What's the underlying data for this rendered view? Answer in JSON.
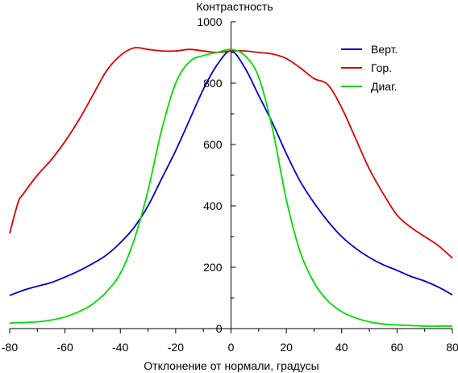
{
  "chart_data": {
    "type": "line",
    "title": "",
    "xlabel": "Отклонение от нормали, градусы",
    "ylabel": "Контрастность",
    "xlim": [
      -80,
      80
    ],
    "ylim": [
      0,
      1000
    ],
    "x_ticks": [
      -80,
      -60,
      -40,
      -20,
      0,
      20,
      40,
      60,
      80
    ],
    "y_ticks": [
      0,
      200,
      400,
      600,
      800,
      1000
    ],
    "grid": false,
    "legend_position": "top-right",
    "series": [
      {
        "name": "Верт.",
        "color": "#0000cc",
        "x": [
          -80,
          -75,
          -70,
          -65,
          -60,
          -55,
          -50,
          -45,
          -40,
          -35,
          -30,
          -25,
          -20,
          -15,
          -10,
          -5,
          0,
          5,
          10,
          15,
          20,
          25,
          30,
          35,
          40,
          45,
          50,
          55,
          60,
          65,
          70,
          75,
          80
        ],
        "y": [
          108,
          125,
          138,
          150,
          168,
          188,
          212,
          240,
          280,
          330,
          400,
          490,
          580,
          680,
          780,
          860,
          905,
          850,
          760,
          670,
          570,
          480,
          410,
          350,
          300,
          262,
          232,
          208,
          190,
          170,
          155,
          135,
          110
        ]
      },
      {
        "name": "Гор.",
        "color": "#dd0000",
        "x": [
          -80,
          -77,
          -75,
          -70,
          -65,
          -60,
          -55,
          -50,
          -45,
          -40,
          -35,
          -30,
          -25,
          -20,
          -15,
          -10,
          -5,
          0,
          5,
          10,
          15,
          20,
          25,
          30,
          35,
          40,
          45,
          50,
          55,
          60,
          65,
          70,
          75,
          80
        ],
        "y": [
          310,
          410,
          440,
          500,
          550,
          610,
          680,
          760,
          840,
          890,
          915,
          910,
          905,
          905,
          910,
          905,
          900,
          905,
          905,
          900,
          895,
          880,
          850,
          815,
          795,
          720,
          620,
          520,
          440,
          370,
          330,
          300,
          270,
          230
        ]
      },
      {
        "name": "Диаг.",
        "color": "#00dd00",
        "x": [
          -80,
          -70,
          -65,
          -60,
          -55,
          -50,
          -45,
          -40,
          -35,
          -30,
          -25,
          -20,
          -15,
          -10,
          -5,
          0,
          5,
          10,
          15,
          20,
          25,
          30,
          35,
          40,
          45,
          50,
          55,
          60,
          65,
          70,
          75,
          80
        ],
        "y": [
          18,
          22,
          28,
          38,
          55,
          80,
          120,
          180,
          290,
          450,
          650,
          800,
          870,
          890,
          900,
          910,
          890,
          820,
          650,
          420,
          250,
          150,
          90,
          55,
          35,
          22,
          15,
          12,
          10,
          8,
          8,
          8
        ]
      }
    ]
  }
}
